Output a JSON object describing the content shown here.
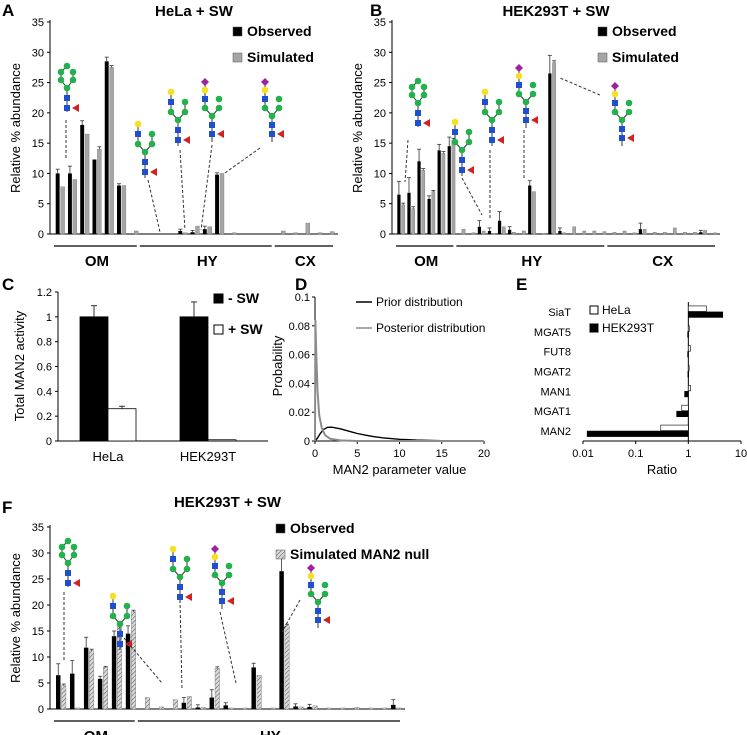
{
  "colors": {
    "black": "#000000",
    "gray": "#a6a6a6",
    "hatch": "#bfbfbf",
    "white": "#ffffff"
  },
  "chart_data": [
    {
      "id": "A",
      "panel_letter": "A",
      "type": "bar",
      "title": "HeLa + SW",
      "ylabel": "Relative % abundance",
      "ylim": [
        0,
        35
      ],
      "yticks": [
        "0",
        "5",
        "10",
        "15",
        "20",
        "25",
        "30",
        "35"
      ],
      "legend": [
        "Observed",
        "Simulated"
      ],
      "groups": [
        "OM",
        "HY",
        "CX"
      ],
      "series": [
        {
          "name": "Observed",
          "values": [
            10,
            10,
            18,
            12.3,
            28.5,
            8,
            0,
            0,
            0,
            0,
            0.5,
            0.3,
            0.8,
            9.8,
            0,
            0,
            0,
            0,
            0,
            0,
            0,
            0,
            0
          ]
        },
        {
          "name": "Simulated",
          "values": [
            7.8,
            9,
            16.5,
            14,
            27.5,
            8,
            0.5,
            0,
            0,
            0,
            0.2,
            1.3,
            1.2,
            10,
            0.2,
            0,
            0,
            0,
            0.5,
            0.2,
            1.8,
            0.2,
            0.4
          ]
        }
      ],
      "errors": [
        [
          0.7,
          1.2,
          0.7,
          0,
          0.7,
          0.3,
          0,
          0,
          0,
          0,
          0.3,
          0.3,
          0.5,
          0.3,
          0,
          0,
          0,
          0,
          0,
          0,
          0,
          0,
          0
        ],
        [
          0,
          0,
          0,
          0.4,
          0.3,
          0,
          0,
          0,
          0,
          0,
          0,
          0,
          0,
          0,
          0,
          0,
          0,
          0,
          0,
          0,
          0,
          0,
          0
        ]
      ]
    },
    {
      "id": "B",
      "panel_letter": "B",
      "type": "bar",
      "title": "HEK293T + SW",
      "ylabel": "Relative % abundance",
      "ylim": [
        0,
        35
      ],
      "yticks": [
        "0",
        "5",
        "10",
        "15",
        "20",
        "25",
        "30",
        "35"
      ],
      "legend": [
        "Observed",
        "Simulated"
      ],
      "groups": [
        "OM",
        "HY",
        "CX"
      ],
      "series": [
        {
          "name": "Observed",
          "values": [
            6.5,
            6.8,
            12,
            5.8,
            13.8,
            14.5,
            0,
            0,
            1.2,
            0.5,
            2.2,
            0.7,
            0,
            8,
            0,
            26.5,
            0.5,
            0,
            0,
            0,
            0,
            0,
            0,
            0,
            0.8,
            0,
            0,
            0,
            0,
            0,
            0.3,
            0
          ]
        },
        {
          "name": "Simulated",
          "values": [
            4.8,
            4.2,
            10.5,
            7,
            13.3,
            15.5,
            0.8,
            0.2,
            0.5,
            0.1,
            1.2,
            0.3,
            0.5,
            7,
            0.1,
            28.3,
            0.2,
            1.2,
            0.5,
            0.5,
            0.4,
            0.3,
            0.5,
            0.2,
            0.8,
            0.3,
            0.3,
            1,
            0.3,
            0.3,
            0.6,
            0.2
          ]
        }
      ],
      "errors": [
        [
          2.2,
          2.5,
          2,
          0.5,
          1,
          1.5,
          0,
          0,
          1,
          0.5,
          1.5,
          0.5,
          0,
          0.8,
          0,
          3,
          0.5,
          0,
          0,
          0,
          0,
          0,
          0,
          0,
          1,
          0,
          0,
          0,
          0,
          0,
          0.3,
          0
        ],
        [
          0.3,
          0.3,
          0.3,
          0.2,
          0.3,
          0.3,
          0,
          0,
          0,
          0,
          0,
          0,
          0,
          0,
          0,
          0.3,
          0,
          0,
          0,
          0,
          0,
          0,
          0,
          0,
          0,
          0,
          0,
          0,
          0,
          0,
          0,
          0
        ]
      ]
    },
    {
      "id": "C",
      "panel_letter": "C",
      "type": "bar",
      "ylabel": "Total MAN2 activity",
      "ylim": [
        0,
        1.2
      ],
      "yticks": [
        "0",
        "0.2",
        "0.4",
        "0.6",
        "0.8",
        "1",
        "1.2"
      ],
      "categories": [
        "HeLa",
        "HEK293T"
      ],
      "legend": [
        "- SW",
        "+ SW"
      ],
      "series": [
        {
          "name": "- SW",
          "values": [
            1,
            1
          ]
        },
        {
          "name": "+ SW",
          "values": [
            0.26,
            0.01
          ]
        }
      ],
      "errors": [
        [
          0.09,
          0.12
        ],
        [
          0.02,
          0
        ]
      ]
    },
    {
      "id": "D",
      "panel_letter": "D",
      "type": "line",
      "ylabel": "Probability",
      "xlabel": "MAN2 parameter value",
      "xlim": [
        0,
        20
      ],
      "ylim": [
        0,
        0.1
      ],
      "xticks": [
        "0",
        "5",
        "10",
        "15",
        "20"
      ],
      "yticks": [
        "0",
        "0.02",
        "0.04",
        "0.06",
        "0.08",
        "0.1"
      ],
      "legend": [
        "Prior distribution",
        "Posterior distribution"
      ],
      "series": [
        {
          "name": "Prior distribution",
          "x": [
            0,
            0.3,
            0.6,
            1,
            1.5,
            2,
            3,
            4,
            5,
            6,
            7,
            8,
            10,
            12,
            15,
            20
          ],
          "y": [
            0,
            0.002,
            0.005,
            0.008,
            0.0095,
            0.0096,
            0.0085,
            0.0068,
            0.0052,
            0.004,
            0.003,
            0.0022,
            0.0012,
            0.0006,
            0.0002,
            0
          ]
        },
        {
          "name": "Posterior distribution",
          "x": [
            0,
            0.05,
            0.15,
            0.3,
            0.5,
            0.8,
            1.2,
            1.8,
            3,
            5,
            20
          ],
          "y": [
            0,
            0.084,
            0.06,
            0.035,
            0.018,
            0.009,
            0.004,
            0.0015,
            0.0004,
            0,
            0
          ]
        }
      ]
    },
    {
      "id": "E",
      "panel_letter": "E",
      "type": "bar",
      "orientation": "horizontal",
      "xscale": "log",
      "xlabel": "Ratio",
      "xlim": [
        0.01,
        10
      ],
      "xticks": [
        "0.01",
        "0.1",
        "1",
        "10"
      ],
      "categories": [
        "SiaT",
        "MGAT5",
        "FUT8",
        "MGAT2",
        "MAN1",
        "MGAT1",
        "MAN2"
      ],
      "legend": [
        "HeLa",
        "HEK293T"
      ],
      "series": [
        {
          "name": "HeLa",
          "values": [
            2.2,
            1.05,
            1.1,
            1.02,
            1.1,
            0.75,
            0.3
          ]
        },
        {
          "name": "HEK293T",
          "values": [
            4.5,
            0.97,
            0.97,
            0.98,
            0.85,
            0.6,
            0.012
          ]
        }
      ]
    },
    {
      "id": "F",
      "panel_letter": "F",
      "type": "bar",
      "title": "HEK293T + SW",
      "ylabel": "Relative % abundance",
      "ylim": [
        0,
        35
      ],
      "yticks": [
        "0",
        "5",
        "10",
        "15",
        "20",
        "25",
        "30",
        "35"
      ],
      "legend": [
        "Observed",
        "Simulated MAN2 null"
      ],
      "groups": [
        "OM",
        "HY"
      ],
      "series": [
        {
          "name": "Observed",
          "values": [
            6.5,
            6.8,
            11.8,
            5.8,
            14,
            14.5,
            0,
            0,
            0,
            1.2,
            0.3,
            2.2,
            0.7,
            0,
            8,
            0,
            26.5,
            0.5,
            0.4,
            0,
            0,
            0,
            0,
            0,
            0.8
          ]
        },
        {
          "name": "Simulated MAN2 null",
          "values": [
            4.5,
            0.2,
            11.2,
            8,
            15.8,
            18.7,
            2.2,
            0.4,
            1.8,
            2.4,
            0.3,
            7.8,
            0.2,
            0.2,
            6.5,
            0.2,
            16,
            0.4,
            0.6,
            0.2,
            0.2,
            0.3,
            0.2,
            0.2,
            0.2
          ]
        }
      ],
      "errors": [
        [
          2.2,
          2.5,
          2,
          0.5,
          1,
          1.5,
          0,
          0,
          0,
          1,
          0.5,
          1.5,
          0.5,
          0,
          0.8,
          0,
          3,
          0.5,
          0.5,
          0,
          0,
          0,
          0,
          0,
          1
        ],
        [
          0.3,
          0,
          0.3,
          0.2,
          0.3,
          0.3,
          0,
          0,
          0,
          0,
          0,
          0.3,
          0,
          0,
          0,
          0,
          0.3,
          0,
          0,
          0,
          0,
          0,
          0,
          0,
          0
        ]
      ]
    }
  ]
}
